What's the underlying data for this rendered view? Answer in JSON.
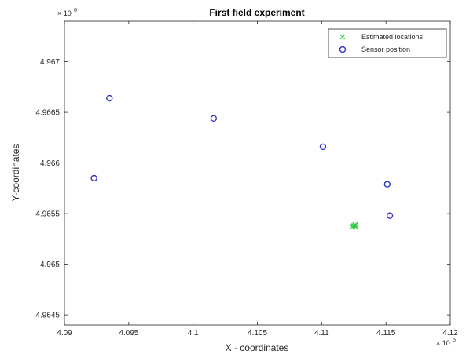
{
  "chart_data": {
    "type": "scatter",
    "title": "First field experiment",
    "xlabel": "X - coordinates",
    "ylabel": "Y-coordinates",
    "x_multiplier": "× 10",
    "x_multiplier_exp": "5",
    "y_multiplier": "× 10",
    "y_multiplier_exp": "6",
    "xlim": [
      4.09,
      4.12
    ],
    "ylim": [
      4.9644,
      4.9674
    ],
    "x_ticks": [
      4.09,
      4.095,
      4.1,
      4.105,
      4.11,
      4.115,
      4.12
    ],
    "x_tick_labels": [
      "4.09",
      "4.095",
      "4.1",
      "4.105",
      "4.11",
      "4.115",
      "4.12"
    ],
    "y_ticks": [
      4.9645,
      4.965,
      4.9655,
      4.966,
      4.9665,
      4.967
    ],
    "y_tick_labels": [
      "4.9645",
      "4.965",
      "4.9655",
      "4.966",
      "4.9665",
      "4.967"
    ],
    "grid": false,
    "legend": "top-right",
    "series": [
      {
        "name": "Estimated locations",
        "marker": "x",
        "color": "#2ecc40",
        "points": [
          [
            4.1125,
            4.96538
          ],
          [
            4.1126,
            4.96539
          ],
          [
            4.1124,
            4.96537
          ],
          [
            4.1126,
            4.96537
          ]
        ]
      },
      {
        "name": "Sensor position",
        "marker": "o",
        "color": "#3333cc",
        "points": [
          [
            4.0935,
            4.96664
          ],
          [
            4.0923,
            4.96585
          ],
          [
            4.1016,
            4.96644
          ],
          [
            4.1101,
            4.96616
          ],
          [
            4.1151,
            4.96579
          ],
          [
            4.1153,
            4.96548
          ]
        ]
      }
    ]
  }
}
